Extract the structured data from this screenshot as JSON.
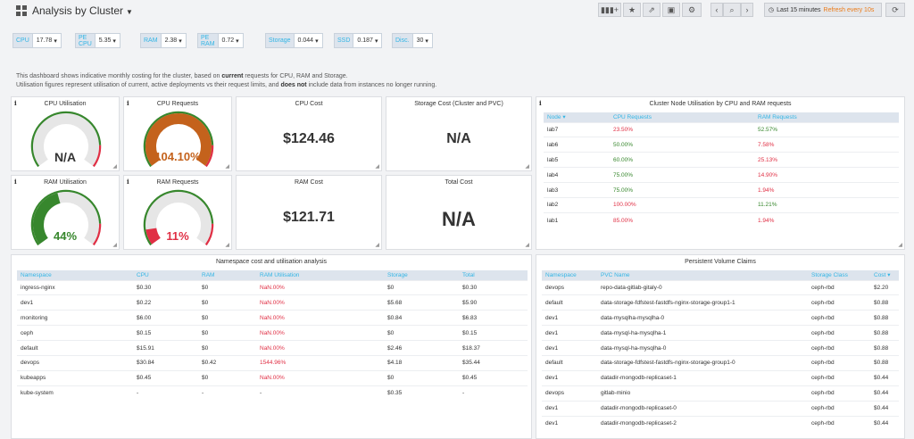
{
  "header": {
    "title": "Analysis by Cluster",
    "time_range": "Last 15 minutes",
    "refresh": "Refresh every 10s"
  },
  "variables": [
    {
      "label": "CPU",
      "value": "17.78"
    },
    {
      "label": "PE CPU",
      "value": "5.35"
    },
    {
      "label": "RAM",
      "value": "2.38"
    },
    {
      "label": "PE RAM",
      "value": "0.72"
    },
    {
      "label": "Storage",
      "value": "0.044"
    },
    {
      "label": "SSD",
      "value": "0.187"
    },
    {
      "label": "Disc.",
      "value": "30"
    }
  ],
  "description": {
    "line1_a": "This dashboard shows indicative monthly costing for the cluster, based on ",
    "line1_b": "current",
    "line1_c": " requests for CPU, RAM and Storage.",
    "line2_a": "Utilisation figures represent utilisation of current, active deployments vs their request limits, and ",
    "line2_b": "does not",
    "line2_c": " include data from instances no longer running."
  },
  "panels": {
    "cpu_util": {
      "title": "CPU Utilisation",
      "value": "N/A",
      "fraction": 0
    },
    "cpu_req": {
      "title": "CPU Requests",
      "value": "104.10%",
      "fraction": 1.0
    },
    "cpu_cost": {
      "title": "CPU Cost",
      "value": "$124.46"
    },
    "storage_cost": {
      "title": "Storage Cost (Cluster and PVC)",
      "value": "N/A"
    },
    "ram_util": {
      "title": "RAM Utilisation",
      "value": "44%",
      "fraction": 0.44
    },
    "ram_req": {
      "title": "RAM Requests",
      "value": "11%",
      "fraction": 0.11
    },
    "ram_cost": {
      "title": "RAM Cost",
      "value": "$121.71"
    },
    "total_cost": {
      "title": "Total Cost",
      "value": "N/A"
    }
  },
  "colors": {
    "green": "#37872d",
    "orange": "#c4621c",
    "red": "#e02f44",
    "gray": "#e6e6e6",
    "accent": "#33b5e5"
  },
  "node_util": {
    "title": "Cluster Node Utilisation by CPU and RAM requests",
    "headers": [
      "Node",
      "CPU Requests",
      "RAM Requests"
    ],
    "rows": [
      [
        "lab7",
        "23.50%",
        "52.57%"
      ],
      [
        "lab6",
        "50.00%",
        "7.58%"
      ],
      [
        "lab5",
        "60.00%",
        "25.13%"
      ],
      [
        "lab4",
        "75.00%",
        "14.90%"
      ],
      [
        "lab3",
        "75.00%",
        "1.94%"
      ],
      [
        "lab2",
        "100.00%",
        "11.21%"
      ],
      [
        "lab1",
        "85.00%",
        "1.94%"
      ]
    ],
    "row_colors": [
      [
        "red",
        "green"
      ],
      [
        "green",
        "red"
      ],
      [
        "green",
        "red"
      ],
      [
        "green",
        "red"
      ],
      [
        "green",
        "red"
      ],
      [
        "red",
        "green"
      ],
      [
        "red",
        "red"
      ]
    ]
  },
  "namespace": {
    "title": "Namespace cost and utilisation analysis",
    "headers": [
      "Namespace",
      "CPU",
      "RAM",
      "RAM Utilisation",
      "Storage",
      "Total"
    ],
    "rows": [
      [
        "ingress-nginx",
        "$0.30",
        "$0",
        "NaN.00%",
        "$0",
        "$0.30"
      ],
      [
        "dev1",
        "$0.22",
        "$0",
        "NaN.00%",
        "$5.68",
        "$5.90"
      ],
      [
        "monitoring",
        "$6.00",
        "$0",
        "NaN.00%",
        "$0.84",
        "$6.83"
      ],
      [
        "ceph",
        "$0.15",
        "$0",
        "NaN.00%",
        "$0",
        "$0.15"
      ],
      [
        "default",
        "$15.91",
        "$0",
        "NaN.00%",
        "$2.46",
        "$18.37"
      ],
      [
        "devops",
        "$30.84",
        "$0.42",
        "1544.96%",
        "$4.18",
        "$35.44"
      ],
      [
        "kubeapps",
        "$0.45",
        "$0",
        "NaN.00%",
        "$0",
        "$0.45"
      ],
      [
        "kube-system",
        "-",
        "-",
        "-",
        "$0.35",
        "-"
      ]
    ]
  },
  "pvc": {
    "title": "Persistent Volume Claims",
    "headers": [
      "Namespace",
      "PVC Name",
      "Storage Class",
      "Cost"
    ],
    "rows": [
      [
        "devops",
        "repo-data-gitlab-gitaly-0",
        "ceph-rbd",
        "$2.20"
      ],
      [
        "default",
        "data-storage-fdfstest-fastdfs-nginx-storage-group1-1",
        "ceph-rbd",
        "$0.88"
      ],
      [
        "dev1",
        "data-mysqlha-mysqlha-0",
        "ceph-rbd",
        "$0.88"
      ],
      [
        "dev1",
        "data-mysql-ha-mysqlha-1",
        "ceph-rbd",
        "$0.88"
      ],
      [
        "dev1",
        "data-mysql-ha-mysqlha-0",
        "ceph-rbd",
        "$0.88"
      ],
      [
        "default",
        "data-storage-fdfstest-fastdfs-nginx-storage-group1-0",
        "ceph-rbd",
        "$0.88"
      ],
      [
        "dev1",
        "datadir-mongodb-replicaset-1",
        "ceph-rbd",
        "$0.44"
      ],
      [
        "devops",
        "gitlab-minio",
        "ceph-rbd",
        "$0.44"
      ],
      [
        "dev1",
        "datadir-mongodb-replicaset-0",
        "ceph-rbd",
        "$0.44"
      ],
      [
        "dev1",
        "datadir-mongodb-replicaset-2",
        "ceph-rbd",
        "$0.44"
      ]
    ]
  }
}
